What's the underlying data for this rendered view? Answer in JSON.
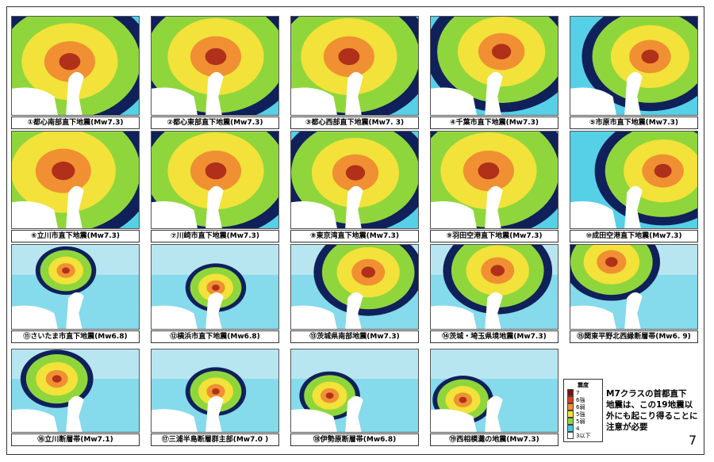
{
  "maps": [
    {
      "caption": "①都心南部直下地震(Mw7.3)"
    },
    {
      "caption": "②都心東部直下地震(Mw7.3)"
    },
    {
      "caption": "③都心西部直下地震(Mw7. 3)"
    },
    {
      "caption": "④千葉市直下地震(Mw7.3)"
    },
    {
      "caption": "⑤市原市直下地震(Mw7.3)"
    },
    {
      "caption": "⑥立川市直下地震(Mw7.3)"
    },
    {
      "caption": "⑦川崎市直下地震(Mw7.3)"
    },
    {
      "caption": "⑧東京湾直下地震(Mw7.3)"
    },
    {
      "caption": "⑨羽田空港直下地震(Mw7.3)"
    },
    {
      "caption": "⑩成田空港直下地震(Mw7.3)"
    },
    {
      "caption": "⑪さいたま市直下地震(Mw6.8)"
    },
    {
      "caption": "⑫横浜市直下地震(Mw6.8)"
    },
    {
      "caption": "⑬茨城県南部地震(Mw7.3)"
    },
    {
      "caption": "⑭茨城・埼玉県境地震(Mw7.3)"
    },
    {
      "caption": "⑮関東平野北西縁断層帯(Mw6. 9)"
    },
    {
      "caption": "⑯立川断層帯(Mw7.1)"
    },
    {
      "caption": "⑰三浦半島断層群主部(Mw7.0 )"
    },
    {
      "caption": "⑱伊勢原断層帯(Mw6.8)"
    },
    {
      "caption": "⑲西相模灘の地震(Mw7.3)"
    }
  ],
  "legend": {
    "title": "震度",
    "items": [
      {
        "label": "7",
        "color": "#7a1414"
      },
      {
        "label": "6強",
        "color": "#d8401e"
      },
      {
        "label": "6弱",
        "color": "#f09032"
      },
      {
        "label": "5強",
        "color": "#f2e23a"
      },
      {
        "label": "5弱",
        "color": "#8fd63c"
      },
      {
        "label": "4",
        "color": "#48c8e2"
      },
      {
        "label": "3以下",
        "color": "#ffffff"
      }
    ]
  },
  "note": {
    "lines": [
      "M7クラスの首都直下",
      "地震は、この19地震以",
      "外にも起こり得ることに",
      "注意が必要"
    ]
  },
  "page_number": "7"
}
